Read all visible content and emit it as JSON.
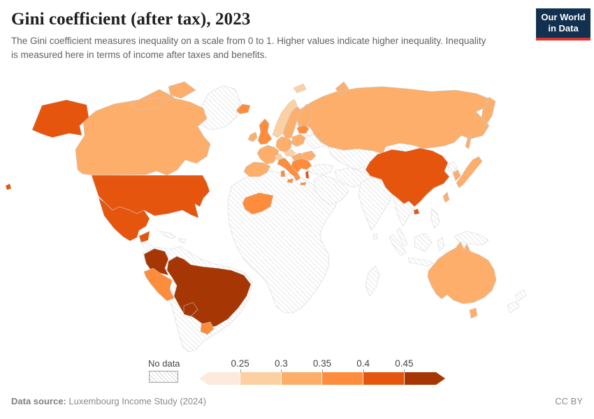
{
  "header": {
    "title": "Gini coefficient (after tax), 2023",
    "subtitle": "The Gini coefficient measures inequality on a scale from 0 to 1. Higher values indicate higher inequality. Inequality is measured here in terms of income after taxes and benefits."
  },
  "logo": {
    "line1": "Our World",
    "line2": "in Data",
    "bg_color": "#12304f",
    "accent_color": "#dc352c",
    "text_color": "#ffffff"
  },
  "legend": {
    "no_data_label": "No data",
    "tick_labels": [
      "0.25",
      "0.3",
      "0.35",
      "0.4",
      "0.45"
    ],
    "colors": [
      "#fdeadc",
      "#fdd0a2",
      "#fdae6b",
      "#fd8d3c",
      "#e6550d",
      "#a63603"
    ]
  },
  "footer": {
    "source_label": "Data source:",
    "source_value": " Luxembourg Income Study (2024)",
    "license": "CC BY"
  },
  "chart_data": {
    "type": "choropleth_map",
    "title": "Gini coefficient (after tax), 2023",
    "subtitle": "The Gini coefficient measures inequality on a scale from 0 to 1. Higher values indicate higher inequality. Inequality is measured here in terms of income after taxes and benefits.",
    "year": 2023,
    "scale": "0 to 1",
    "bins": [
      "<0.25",
      "0.25–0.3",
      "0.3–0.35",
      "0.35–0.4",
      "0.4–0.45",
      ">0.45"
    ],
    "bin_colors": [
      "#fdeadc",
      "#fdd0a2",
      "#fdae6b",
      "#fd8d3c",
      "#e6550d",
      "#a63603"
    ],
    "no_data_style": "white with diagonal gray hatching",
    "legend_position": "bottom",
    "countries": [
      {
        "name": "Norway",
        "bin": "0.25–0.3"
      },
      {
        "name": "Switzerland",
        "bin": "0.25–0.3"
      },
      {
        "name": "Czechia",
        "bin": "0.25–0.3"
      },
      {
        "name": "Canada",
        "bin": "0.3–0.35"
      },
      {
        "name": "Russia",
        "bin": "0.3–0.35"
      },
      {
        "name": "Japan",
        "bin": "0.3–0.35"
      },
      {
        "name": "South Korea",
        "bin": "0.3–0.35"
      },
      {
        "name": "Taiwan",
        "bin": "0.3–0.35"
      },
      {
        "name": "Australia",
        "bin": "0.3–0.35"
      },
      {
        "name": "Sweden",
        "bin": "0.3–0.35"
      },
      {
        "name": "Finland",
        "bin": "0.3–0.35"
      },
      {
        "name": "Denmark",
        "bin": "0.3–0.35"
      },
      {
        "name": "Ireland",
        "bin": "0.3–0.35"
      },
      {
        "name": "France",
        "bin": "0.3–0.35"
      },
      {
        "name": "Spain",
        "bin": "0.3–0.35"
      },
      {
        "name": "Portugal",
        "bin": "0.3–0.35"
      },
      {
        "name": "Germany",
        "bin": "0.3–0.35"
      },
      {
        "name": "Poland",
        "bin": "0.3–0.35"
      },
      {
        "name": "Austria",
        "bin": "0.3–0.35"
      },
      {
        "name": "Hungary",
        "bin": "0.3–0.35"
      },
      {
        "name": "Romania",
        "bin": "0.3–0.35"
      },
      {
        "name": "Peru",
        "bin": "0.35–0.4"
      },
      {
        "name": "Uruguay",
        "bin": "0.35–0.4"
      },
      {
        "name": "Mali",
        "bin": "0.35–0.4"
      },
      {
        "name": "Iceland",
        "bin": "0.35–0.4"
      },
      {
        "name": "United Kingdom",
        "bin": "0.35–0.4"
      },
      {
        "name": "Italy",
        "bin": "0.35–0.4"
      },
      {
        "name": "Greece",
        "bin": "0.35–0.4"
      },
      {
        "name": "Serbia",
        "bin": "0.35–0.4"
      },
      {
        "name": "Bulgaria",
        "bin": "0.35–0.4"
      },
      {
        "name": "Latvia",
        "bin": "0.35–0.4"
      },
      {
        "name": "Lithuania",
        "bin": "0.35–0.4"
      },
      {
        "name": "United States",
        "bin": "0.4–0.45"
      },
      {
        "name": "Mexico",
        "bin": "0.4–0.45"
      },
      {
        "name": "China",
        "bin": "0.4–0.45"
      },
      {
        "name": "Israel",
        "bin": "0.4–0.45"
      },
      {
        "name": "Brazil",
        "bin": ">0.45"
      },
      {
        "name": "Colombia",
        "bin": ">0.45"
      },
      {
        "name": "Paraguay",
        "bin": ">0.45"
      }
    ],
    "no_data_regions": [
      "Greenland",
      "Argentina",
      "Chile",
      "Bolivia",
      "Venezuela",
      "Ecuador",
      "Guyana",
      "Suriname",
      "Central America",
      "Caribbean",
      "Most of Africa",
      "Madagascar",
      "Middle East",
      "Turkey",
      "Ukraine",
      "Belarus",
      "Estonia",
      "Kazakhstan",
      "Central Asia",
      "Mongolia",
      "India",
      "South Asia",
      "Southeast Asia",
      "Indonesia",
      "Philippines",
      "Papua New Guinea",
      "New Zealand",
      "North Korea"
    ]
  },
  "map": {
    "ocean_color": "#ffffff",
    "border_color": "#c9c9c9",
    "regions": {
      "greenland": "nodata",
      "central-america": "nodata",
      "caribbean": "nodata",
      "south-america-nodata": "nodata",
      "africa": "nodata",
      "madagascar": "nodata",
      "arabia": "nodata",
      "iran-pakistan": "nodata",
      "turkey": "nodata",
      "central-asia": "nodata",
      "mongolia": "nodata",
      "south-asia": "nodata",
      "southeast-asia": "nodata",
      "new-guinea": "nodata",
      "new-zealand": "nodata",
      "ukraine": "nodata",
      "belarus": "nodata",
      "north-korea": "nodata",
      "estonia": "nodata",
      "canada": "#fdae6b",
      "united-states": "#e6550d",
      "mexico": "#e6550d",
      "colombia": "#a63603",
      "brazil": "#a63603",
      "peru": "#fd8d3c",
      "paraguay": "#a63603",
      "uruguay": "#fd8d3c",
      "russia": "#fdae6b",
      "china": "#e6550d",
      "taiwan": "#fdae6b",
      "japan": "#fdae6b",
      "south-korea": "#fdae6b",
      "israel": "#e6550d",
      "mali": "#fd8d3c",
      "australia": "#fdae6b",
      "iceland": "#fd8d3c",
      "norway": "#fdd0a2",
      "sweden": "#fdae6b",
      "finland": "#fdae6b",
      "denmark": "#fdae6b",
      "united-kingdom": "#fd8d3c",
      "ireland": "#fdae6b",
      "france": "#fdae6b",
      "iberia": "#fdae6b",
      "germany": "#fdae6b",
      "poland": "#fdae6b",
      "czechia": "#fdd0a2",
      "switzerland": "#fdd0a2",
      "austria-hungary": "#fdae6b",
      "romania": "#fdae6b",
      "balkans": "#fd8d3c",
      "baltics": "#fd8d3c",
      "italy": "#fd8d3c"
    }
  }
}
